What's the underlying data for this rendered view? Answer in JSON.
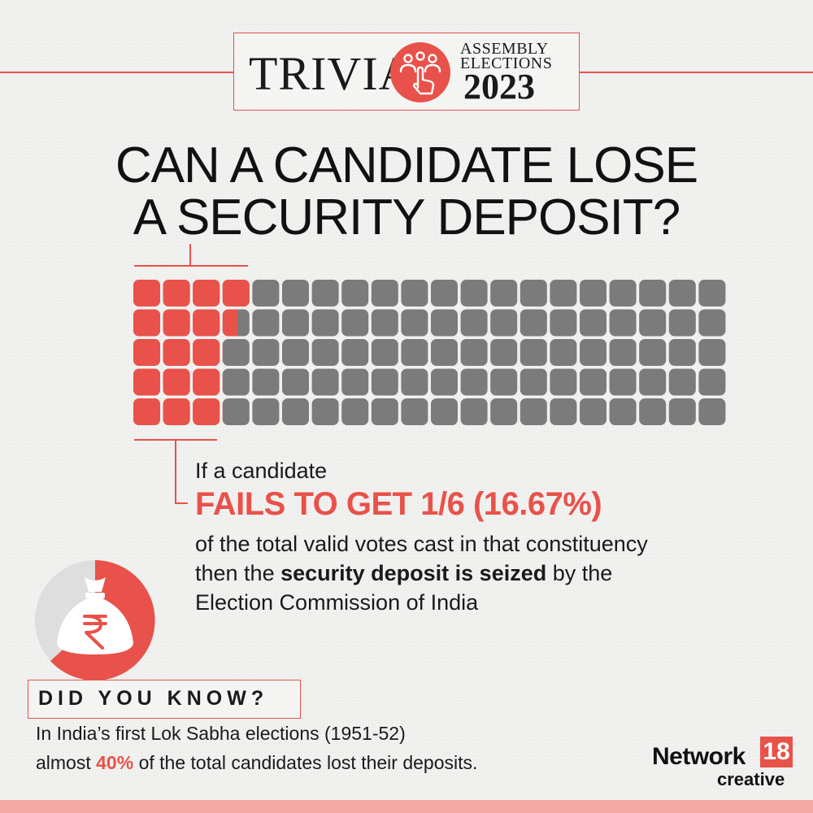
{
  "header": {
    "trivia": "TRIVIA",
    "assembly": "ASSEMBLY",
    "elections": "ELECTIONS",
    "year": "2023",
    "emblem_icon": "voting-hand-icon"
  },
  "headline": {
    "line1": "CAN A CANDIDATE LOSE",
    "line2": "A SECURITY DEPOSIT?"
  },
  "vote_grid": {
    "total_fraction_red": 0.1667,
    "colors": {
      "red": "#e8524a",
      "grey": "#7b7b7b"
    }
  },
  "body": {
    "line1": "If a candidate",
    "highlight": "FAILS TO GET 1/6 (16.67%)",
    "line2": "of the total valid votes cast in that constituency",
    "line3_pre": "then the ",
    "line3_bold": "security deposit is seized",
    "line3_post": " by the",
    "line4": "Election Commission of India",
    "icon": "money-bag-rupee-icon"
  },
  "did_you_know": {
    "label": "DID YOU KNOW?",
    "fact_line1": "In India’s first Lok Sabha elections (1951-52)",
    "fact_line2_pre": "almost ",
    "fact_line2_bold": "40%",
    "fact_line2_post": " of the total candidates lost their deposits."
  },
  "logo": {
    "network": "Network",
    "number": "18",
    "creative": "creative"
  },
  "colors": {
    "accent": "#e8524a",
    "text": "#1a1a1a",
    "background": "#f1f1f0"
  }
}
